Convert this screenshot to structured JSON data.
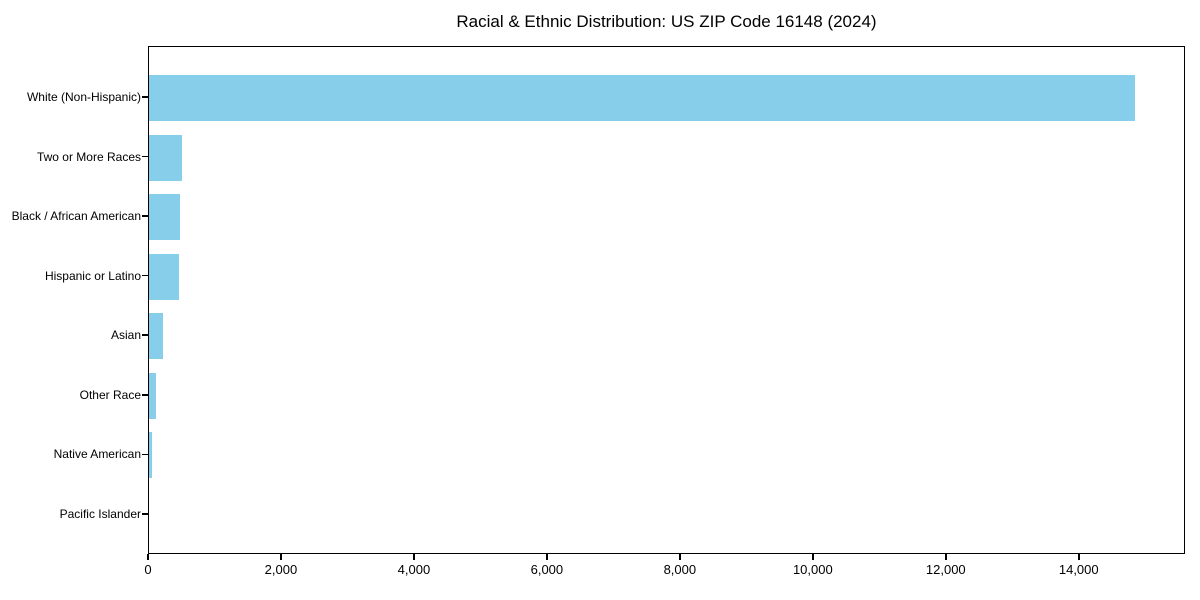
{
  "chart_data": {
    "type": "bar",
    "orientation": "horizontal",
    "title": "Racial & Ethnic Distribution: US ZIP Code 16148 (2024)",
    "xlabel": "",
    "ylabel": "",
    "categories": [
      "White (Non-Hispanic)",
      "Two or More Races",
      "Black / African American",
      "Hispanic or Latino",
      "Asian",
      "Other Race",
      "Native American",
      "Pacific Islander"
    ],
    "values": [
      14855,
      490,
      460,
      445,
      205,
      100,
      45,
      0
    ],
    "xlim": [
      0,
      15598
    ],
    "xticks": [
      0,
      2000,
      4000,
      6000,
      8000,
      10000,
      12000,
      14000
    ],
    "xtick_labels": [
      "0",
      "2,000",
      "4,000",
      "6,000",
      "8,000",
      "10,000",
      "12,000",
      "14,000"
    ],
    "grid": false,
    "legend": null,
    "colors": {
      "bar": "#87CEEB",
      "spine": "#000000",
      "text": "#000000",
      "background": "#FFFFFF"
    }
  }
}
